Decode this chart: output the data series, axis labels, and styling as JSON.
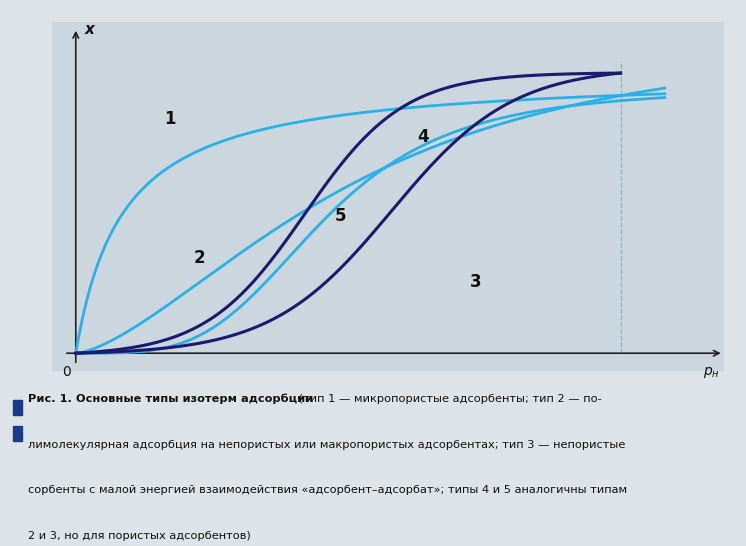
{
  "bg_color": "#ccd6de",
  "outer_bg_color": "#dce4e9",
  "curve1_color": "#29b0e8",
  "curve23_color": "#29b0e8",
  "curve45_color": "#1a1a6e",
  "vline_color": "#5ab8e8",
  "axis_color": "#222222",
  "text_color": "#111111",
  "fig_width": 7.46,
  "fig_height": 5.46,
  "dpi": 100,
  "caption_line1_bold": "Рис. 1. Основные типы изотерм адсорбции",
  "caption_line1_normal": " (тип 1 — микропористые адсорбенты; тип 2 — по-",
  "caption_line2": "лимолекулярная адсорбция на непористых или макропористых адсорбентах; тип 3 — непористые",
  "caption_line3": "сорбенты с малой энергией взаимодействия «адсорбент–адсорбат»; типы 4 и 5 аналогичны типам",
  "caption_line4": "2 и 3, но для пористых адсорбентов)"
}
